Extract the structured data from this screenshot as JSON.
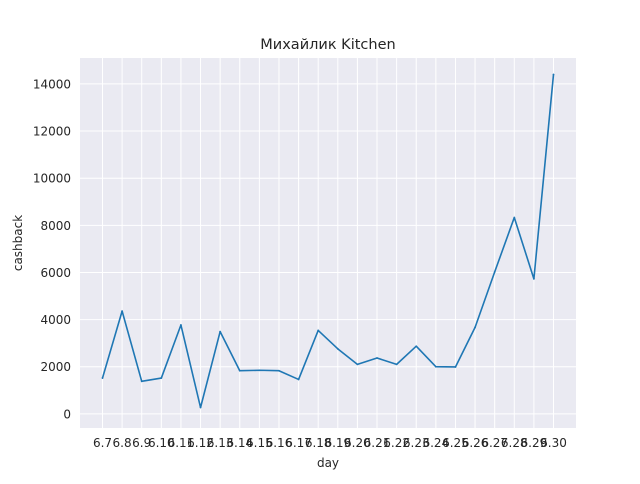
{
  "chart_data": {
    "type": "line",
    "title": "Михайлик Kitchen",
    "xlabel": "day",
    "ylabel": "cashback",
    "categories": [
      "6.7",
      "6.8",
      "6.9",
      "6.10",
      "6.11",
      "6.12",
      "6.13",
      "6.14",
      "6.15",
      "6.16",
      "6.17",
      "6.18",
      "6.19",
      "6.20",
      "6.21",
      "6.22",
      "6.23",
      "6.24",
      "6.25",
      "6.26",
      "6.27",
      "6.28",
      "6.29",
      "6.30"
    ],
    "values": [
      1520,
      4360,
      1380,
      1520,
      3770,
      270,
      3490,
      1830,
      1850,
      1830,
      1460,
      3540,
      2760,
      2100,
      2370,
      2100,
      2870,
      2000,
      1990,
      3670,
      6020,
      8330,
      5730,
      14400
    ],
    "ylim": [
      -600,
      15100
    ],
    "yticks": [
      0,
      2000,
      4000,
      6000,
      8000,
      10000,
      12000,
      14000
    ],
    "ytick_labels": [
      "0",
      "2000",
      "4000",
      "6000",
      "8000",
      "10000",
      "12000",
      "14000"
    ],
    "grid": true,
    "legend": "none",
    "colors": {
      "line": "#1f77b4",
      "plot_bg": "#eaeaf2",
      "grid": "#ffffff",
      "text": "#262626"
    }
  }
}
